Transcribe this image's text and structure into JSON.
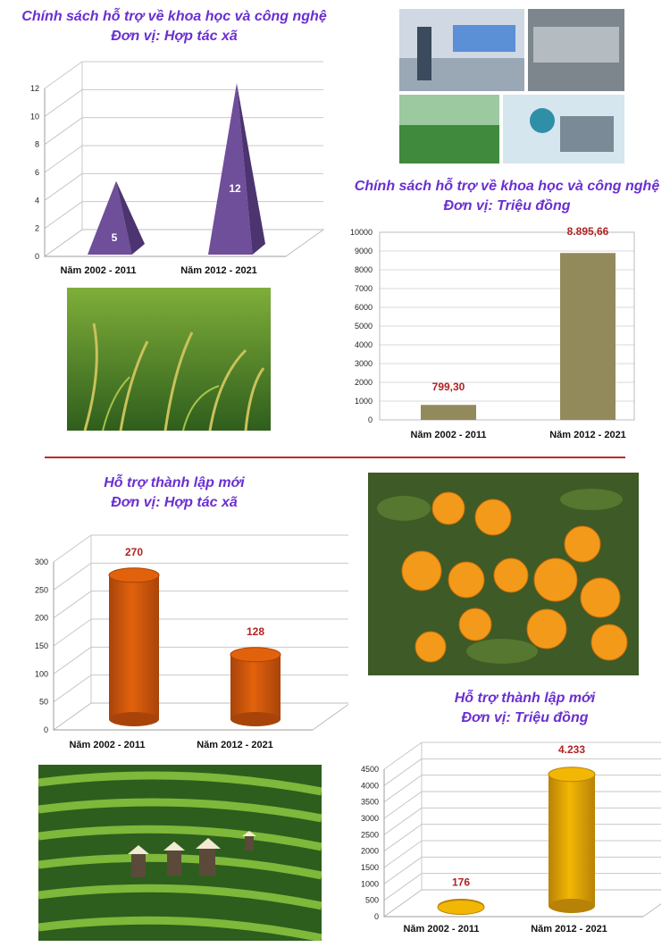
{
  "colors": {
    "title": "#6a2fd1",
    "value_label": "#b22222",
    "pyramid": "#6f4e9a",
    "olive_bar": "#938a5c",
    "orange_cyl": "#e2620c",
    "yellow_cyl": "#f2b705",
    "divider": "#c62828"
  },
  "icons": [
    "lab-robotics-photo",
    "rice-field-photo",
    "orange-tree-photo",
    "tea-hill-photo"
  ],
  "charts": [
    {
      "title_line1": "Chính sách hỗ trợ về khoa học và công nghệ",
      "title_line2": "Đơn vị: Hợp tác xã",
      "chart_data": {
        "type": "bar",
        "mark": "pyramid-3d",
        "categories": [
          "Năm 2002 - 2011",
          "Năm 2012 - 2021"
        ],
        "values": [
          5,
          12
        ],
        "value_labels": [
          "5",
          "12"
        ],
        "y_ticks": [
          "0",
          "2",
          "4",
          "6",
          "8",
          "10",
          "12"
        ],
        "ylim": [
          0,
          12
        ],
        "grid": true
      }
    },
    {
      "title_line1": "Chính sách hỗ trợ về khoa học và công nghệ",
      "title_line2": "Đơn vị: Triệu đồng",
      "chart_data": {
        "type": "bar",
        "mark": "flat",
        "categories": [
          "Năm 2002 - 2011",
          "Năm 2012 - 2021"
        ],
        "values": [
          799.3,
          8895.66
        ],
        "value_labels": [
          "799,30",
          "8.895,66"
        ],
        "y_ticks": [
          "0",
          "1000",
          "2000",
          "3000",
          "4000",
          "5000",
          "6000",
          "7000",
          "8000",
          "9000",
          "10000"
        ],
        "ylim": [
          0,
          10000
        ],
        "grid": true
      }
    },
    {
      "title_line1": "Hỗ trợ thành lập mới",
      "title_line2": "Đơn vị: Hợp tác xã",
      "chart_data": {
        "type": "bar",
        "mark": "cylinder-3d",
        "categories": [
          "Năm 2002 - 2011",
          "Năm 2012 - 2021"
        ],
        "values": [
          270,
          128
        ],
        "value_labels": [
          "270",
          "128"
        ],
        "y_ticks": [
          "0",
          "50",
          "100",
          "150",
          "200",
          "250",
          "300"
        ],
        "ylim": [
          0,
          300
        ],
        "grid": true
      }
    },
    {
      "title_line1": "Hỗ trợ thành lập mới",
      "title_line2": "Đơn vị: Triệu đồng",
      "chart_data": {
        "type": "bar",
        "mark": "cylinder-3d",
        "categories": [
          "Năm 2002 - 2011",
          "Năm 2012 - 2021"
        ],
        "values": [
          176,
          4233
        ],
        "value_labels": [
          "176",
          "4.233"
        ],
        "y_ticks": [
          "0",
          "500",
          "1000",
          "1500",
          "2000",
          "2500",
          "3000",
          "3500",
          "4000",
          "4500"
        ],
        "ylim": [
          0,
          4500
        ],
        "grid": true
      }
    }
  ]
}
